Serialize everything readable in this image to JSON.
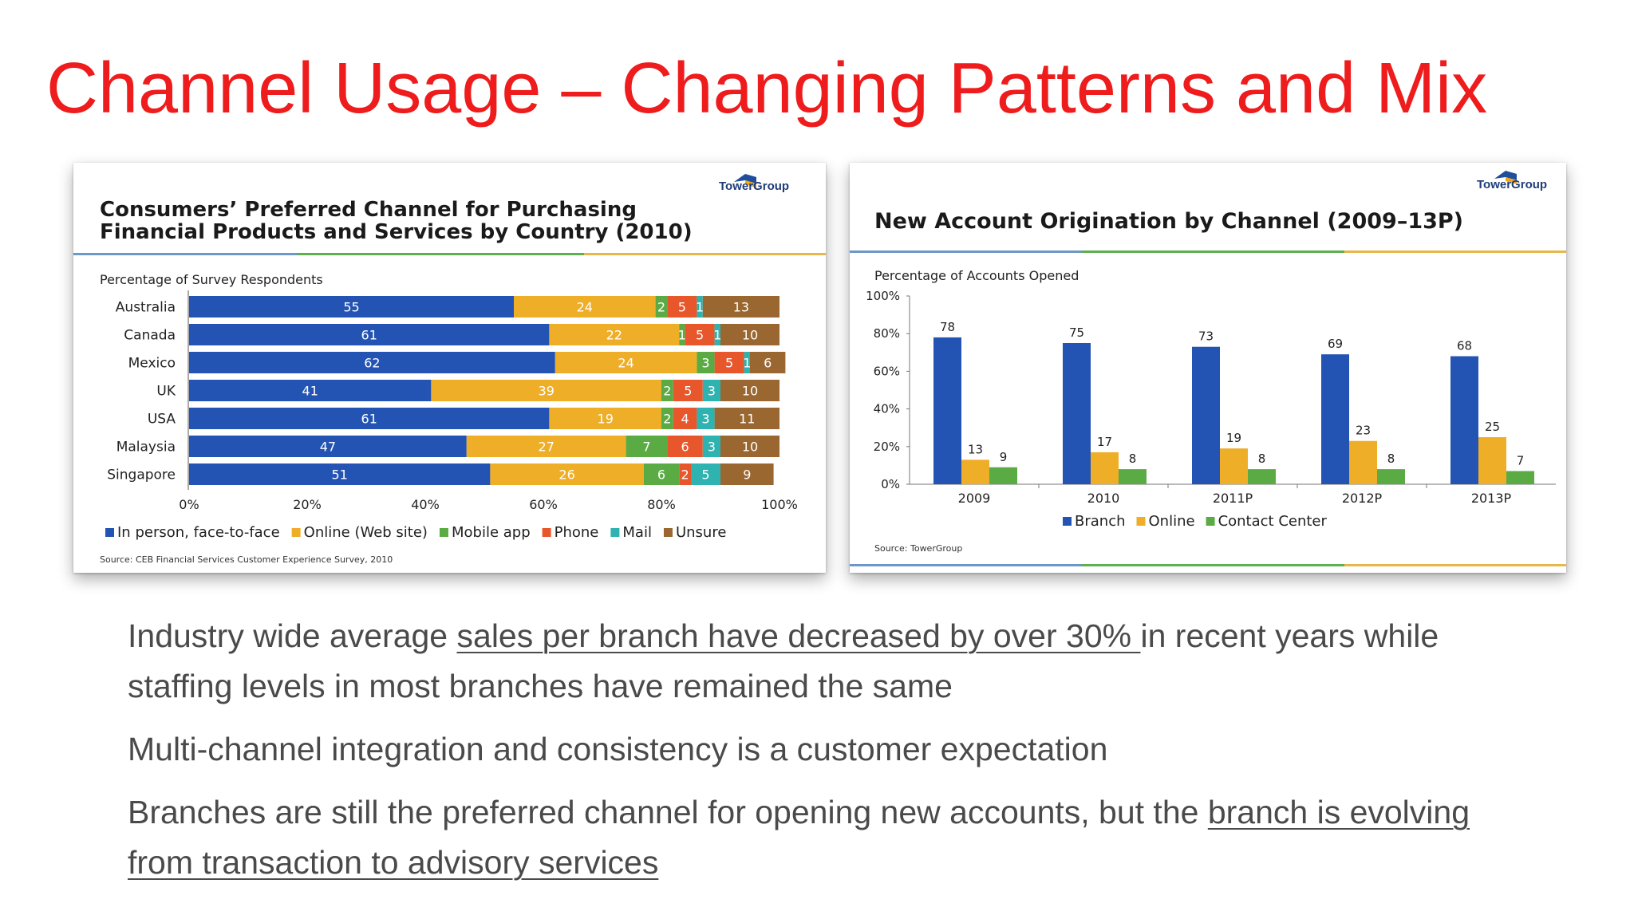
{
  "slide": {
    "title": "Channel Usage – Changing Patterns and Mix"
  },
  "left_panel": {
    "logo_text": "TowerGroup",
    "title_line1": "Consumers’ Preferred Channel for Purchasing",
    "title_line2": "Financial Products and Services by Country (2010)",
    "source": "Source:  CEB Financial Services Customer Experience Survey, 2010"
  },
  "right_panel": {
    "logo_text": "TowerGroup",
    "title": "New Account Origination by Channel (2009–13P)",
    "source": "Source:  TowerGroup"
  },
  "chart_data": [
    {
      "type": "bar",
      "orientation": "horizontal",
      "stacked": true,
      "subtitle": "Percentage of Survey Respondents",
      "categories": [
        "Australia",
        "Canada",
        "Mexico",
        "UK",
        "USA",
        "Malaysia",
        "Singapore"
      ],
      "series": [
        {
          "name": "In person, face-to-face",
          "color": "#2454b3",
          "values": [
            55,
            61,
            62,
            41,
            61,
            47,
            51
          ]
        },
        {
          "name": "Online (Web site)",
          "color": "#eeae28",
          "values": [
            24,
            22,
            24,
            39,
            19,
            27,
            26
          ]
        },
        {
          "name": "Mobile app",
          "color": "#5bab45",
          "values": [
            2,
            1,
            3,
            2,
            2,
            7,
            6
          ]
        },
        {
          "name": "Phone",
          "color": "#e8562b",
          "values": [
            5,
            5,
            5,
            5,
            4,
            6,
            2
          ]
        },
        {
          "name": "Mail",
          "color": "#2eb3b1",
          "values": [
            1,
            1,
            1,
            3,
            3,
            3,
            5
          ]
        },
        {
          "name": "Unsure",
          "color": "#9a6731",
          "values": [
            13,
            10,
            6,
            10,
            11,
            10,
            9
          ]
        }
      ],
      "xlim": [
        0,
        100
      ],
      "xticks": [
        "0%",
        "20%",
        "40%",
        "60%",
        "80%",
        "100%"
      ],
      "legend": "bottom"
    },
    {
      "type": "bar",
      "orientation": "vertical",
      "stacked": false,
      "subtitle": "Percentage of Accounts Opened",
      "categories": [
        "2009",
        "2010",
        "2011P",
        "2012P",
        "2013P"
      ],
      "series": [
        {
          "name": "Branch",
          "color": "#2454b3",
          "values": [
            78,
            75,
            73,
            69,
            68
          ]
        },
        {
          "name": "Online",
          "color": "#eeae28",
          "values": [
            13,
            17,
            19,
            23,
            25
          ]
        },
        {
          "name": "Contact Center",
          "color": "#5bab45",
          "values": [
            9,
            8,
            8,
            8,
            7
          ]
        }
      ],
      "ylim": [
        0,
        100
      ],
      "yticks": [
        "0%",
        "20%",
        "40%",
        "60%",
        "80%",
        "100%"
      ],
      "legend": "bottom"
    }
  ],
  "bullets": [
    {
      "segments": [
        {
          "text": "Industry  wide average ",
          "underline": false
        },
        {
          "text": "sales per branch have decreased by over 30% ",
          "underline": true
        },
        {
          "text": "in recent years while staffing levels in most branches have remained the same",
          "underline": false
        }
      ]
    },
    {
      "segments": [
        {
          "text": "Multi-channel integration and consistency is a customer expectation",
          "underline": false
        }
      ]
    },
    {
      "segments": [
        {
          "text": "Branches are still the preferred channel for opening new accounts, but the ",
          "underline": false
        },
        {
          "text": "branch is evolving from transaction to advisory services",
          "underline": true
        }
      ]
    }
  ]
}
